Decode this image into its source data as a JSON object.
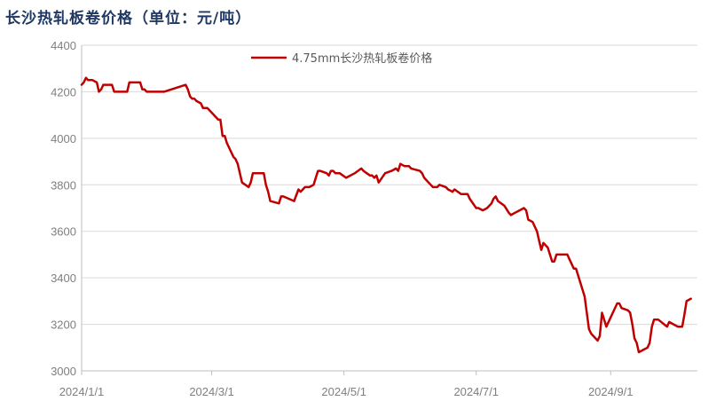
{
  "chart_data": {
    "type": "line",
    "title": "长沙热轧板卷价格（单位：元/吨）",
    "xlabel": "",
    "ylabel": "",
    "ylim": [
      3000,
      4400
    ],
    "yticks": [
      "3000",
      "3200",
      "3400",
      "3600",
      "3800",
      "4000",
      "4200",
      "4400"
    ],
    "xlim": [
      "2024-01-01",
      "2024-10-11"
    ],
    "xticks": [
      {
        "date": "2024-01-01",
        "label": "2024/1/1"
      },
      {
        "date": "2024-03-01",
        "label": "2024/3/1"
      },
      {
        "date": "2024-05-01",
        "label": "2024/5/1"
      },
      {
        "date": "2024-07-01",
        "label": "2024/7/1"
      },
      {
        "date": "2024-09-01",
        "label": "2024/9/1"
      }
    ],
    "grid": "horizontal",
    "legend_position": "top-center",
    "series": [
      {
        "name": "4.75mm长沙热轧板卷价格",
        "color": "#c00000",
        "points": [
          [
            "2024-01-01",
            4230
          ],
          [
            "2024-01-02",
            4240
          ],
          [
            "2024-01-03",
            4260
          ],
          [
            "2024-01-04",
            4250
          ],
          [
            "2024-01-06",
            4250
          ],
          [
            "2024-01-08",
            4240
          ],
          [
            "2024-01-09",
            4200
          ],
          [
            "2024-01-10",
            4210
          ],
          [
            "2024-01-11",
            4230
          ],
          [
            "2024-01-15",
            4230
          ],
          [
            "2024-01-16",
            4200
          ],
          [
            "2024-01-22",
            4200
          ],
          [
            "2024-01-23",
            4240
          ],
          [
            "2024-01-28",
            4240
          ],
          [
            "2024-01-29",
            4210
          ],
          [
            "2024-01-30",
            4210
          ],
          [
            "2024-01-31",
            4200
          ],
          [
            "2024-02-08",
            4200
          ],
          [
            "2024-02-18",
            4230
          ],
          [
            "2024-02-19",
            4210
          ],
          [
            "2024-02-20",
            4180
          ],
          [
            "2024-02-21",
            4170
          ],
          [
            "2024-02-22",
            4170
          ],
          [
            "2024-02-23",
            4160
          ],
          [
            "2024-02-25",
            4150
          ],
          [
            "2024-02-26",
            4130
          ],
          [
            "2024-02-28",
            4130
          ],
          [
            "2024-02-29",
            4120
          ],
          [
            "2024-03-02",
            4100
          ],
          [
            "2024-03-04",
            4080
          ],
          [
            "2024-03-05",
            4080
          ],
          [
            "2024-03-06",
            4010
          ],
          [
            "2024-03-07",
            4010
          ],
          [
            "2024-03-08",
            3980
          ],
          [
            "2024-03-11",
            3920
          ],
          [
            "2024-03-12",
            3910
          ],
          [
            "2024-03-13",
            3890
          ],
          [
            "2024-03-15",
            3810
          ],
          [
            "2024-03-18",
            3790
          ],
          [
            "2024-03-19",
            3810
          ],
          [
            "2024-03-20",
            3850
          ],
          [
            "2024-03-25",
            3850
          ],
          [
            "2024-03-26",
            3800
          ],
          [
            "2024-03-27",
            3770
          ],
          [
            "2024-03-28",
            3730
          ],
          [
            "2024-04-01",
            3720
          ],
          [
            "2024-04-02",
            3750
          ],
          [
            "2024-04-03",
            3750
          ],
          [
            "2024-04-08",
            3730
          ],
          [
            "2024-04-10",
            3780
          ],
          [
            "2024-04-11",
            3770
          ],
          [
            "2024-04-12",
            3780
          ],
          [
            "2024-04-13",
            3790
          ],
          [
            "2024-04-15",
            3790
          ],
          [
            "2024-04-17",
            3800
          ],
          [
            "2024-04-18",
            3830
          ],
          [
            "2024-04-19",
            3860
          ],
          [
            "2024-04-20",
            3860
          ],
          [
            "2024-04-23",
            3850
          ],
          [
            "2024-04-24",
            3840
          ],
          [
            "2024-04-25",
            3860
          ],
          [
            "2024-04-26",
            3860
          ],
          [
            "2024-04-27",
            3850
          ],
          [
            "2024-04-29",
            3850
          ],
          [
            "2024-05-02",
            3830
          ],
          [
            "2024-05-06",
            3850
          ],
          [
            "2024-05-09",
            3870
          ],
          [
            "2024-05-10",
            3860
          ],
          [
            "2024-05-13",
            3840
          ],
          [
            "2024-05-14",
            3840
          ],
          [
            "2024-05-15",
            3830
          ],
          [
            "2024-05-16",
            3840
          ],
          [
            "2024-05-17",
            3810
          ],
          [
            "2024-05-20",
            3850
          ],
          [
            "2024-05-23",
            3860
          ],
          [
            "2024-05-25",
            3870
          ],
          [
            "2024-05-26",
            3860
          ],
          [
            "2024-05-27",
            3890
          ],
          [
            "2024-05-29",
            3880
          ],
          [
            "2024-05-31",
            3880
          ],
          [
            "2024-06-01",
            3870
          ],
          [
            "2024-06-05",
            3860
          ],
          [
            "2024-06-06",
            3850
          ],
          [
            "2024-06-07",
            3830
          ],
          [
            "2024-06-09",
            3810
          ],
          [
            "2024-06-11",
            3790
          ],
          [
            "2024-06-13",
            3790
          ],
          [
            "2024-06-14",
            3800
          ],
          [
            "2024-06-17",
            3790
          ],
          [
            "2024-06-18",
            3780
          ],
          [
            "2024-06-20",
            3770
          ],
          [
            "2024-06-21",
            3780
          ],
          [
            "2024-06-24",
            3760
          ],
          [
            "2024-06-27",
            3760
          ],
          [
            "2024-06-28",
            3740
          ],
          [
            "2024-07-01",
            3700
          ],
          [
            "2024-07-02",
            3700
          ],
          [
            "2024-07-04",
            3690
          ],
          [
            "2024-07-06",
            3700
          ],
          [
            "2024-07-08",
            3720
          ],
          [
            "2024-07-09",
            3740
          ],
          [
            "2024-07-10",
            3750
          ],
          [
            "2024-07-11",
            3730
          ],
          [
            "2024-07-14",
            3710
          ],
          [
            "2024-07-16",
            3680
          ],
          [
            "2024-07-17",
            3670
          ],
          [
            "2024-07-19",
            3680
          ],
          [
            "2024-07-21",
            3690
          ],
          [
            "2024-07-23",
            3700
          ],
          [
            "2024-07-24",
            3690
          ],
          [
            "2024-07-25",
            3650
          ],
          [
            "2024-07-27",
            3640
          ],
          [
            "2024-07-29",
            3600
          ],
          [
            "2024-07-30",
            3560
          ],
          [
            "2024-07-31",
            3520
          ],
          [
            "2024-08-01",
            3550
          ],
          [
            "2024-08-03",
            3530
          ],
          [
            "2024-08-05",
            3470
          ],
          [
            "2024-08-06",
            3470
          ],
          [
            "2024-08-07",
            3500
          ],
          [
            "2024-08-12",
            3500
          ],
          [
            "2024-08-13",
            3480
          ],
          [
            "2024-08-15",
            3440
          ],
          [
            "2024-08-16",
            3440
          ],
          [
            "2024-08-20",
            3320
          ],
          [
            "2024-08-22",
            3180
          ],
          [
            "2024-08-23",
            3160
          ],
          [
            "2024-08-26",
            3130
          ],
          [
            "2024-08-27",
            3150
          ],
          [
            "2024-08-28",
            3250
          ],
          [
            "2024-08-30",
            3190
          ],
          [
            "2024-09-02",
            3250
          ],
          [
            "2024-09-04",
            3290
          ],
          [
            "2024-09-05",
            3290
          ],
          [
            "2024-09-06",
            3270
          ],
          [
            "2024-09-09",
            3260
          ],
          [
            "2024-09-10",
            3250
          ],
          [
            "2024-09-11",
            3200
          ],
          [
            "2024-09-12",
            3140
          ],
          [
            "2024-09-13",
            3120
          ],
          [
            "2024-09-14",
            3080
          ],
          [
            "2024-09-16",
            3090
          ],
          [
            "2024-09-18",
            3100
          ],
          [
            "2024-09-19",
            3120
          ],
          [
            "2024-09-20",
            3190
          ],
          [
            "2024-09-21",
            3220
          ],
          [
            "2024-09-23",
            3220
          ],
          [
            "2024-09-27",
            3190
          ],
          [
            "2024-09-28",
            3210
          ],
          [
            "2024-10-02",
            3190
          ],
          [
            "2024-10-04",
            3190
          ],
          [
            "2024-10-05",
            3240
          ],
          [
            "2024-10-06",
            3300
          ],
          [
            "2024-10-08",
            3310
          ]
        ]
      }
    ]
  }
}
